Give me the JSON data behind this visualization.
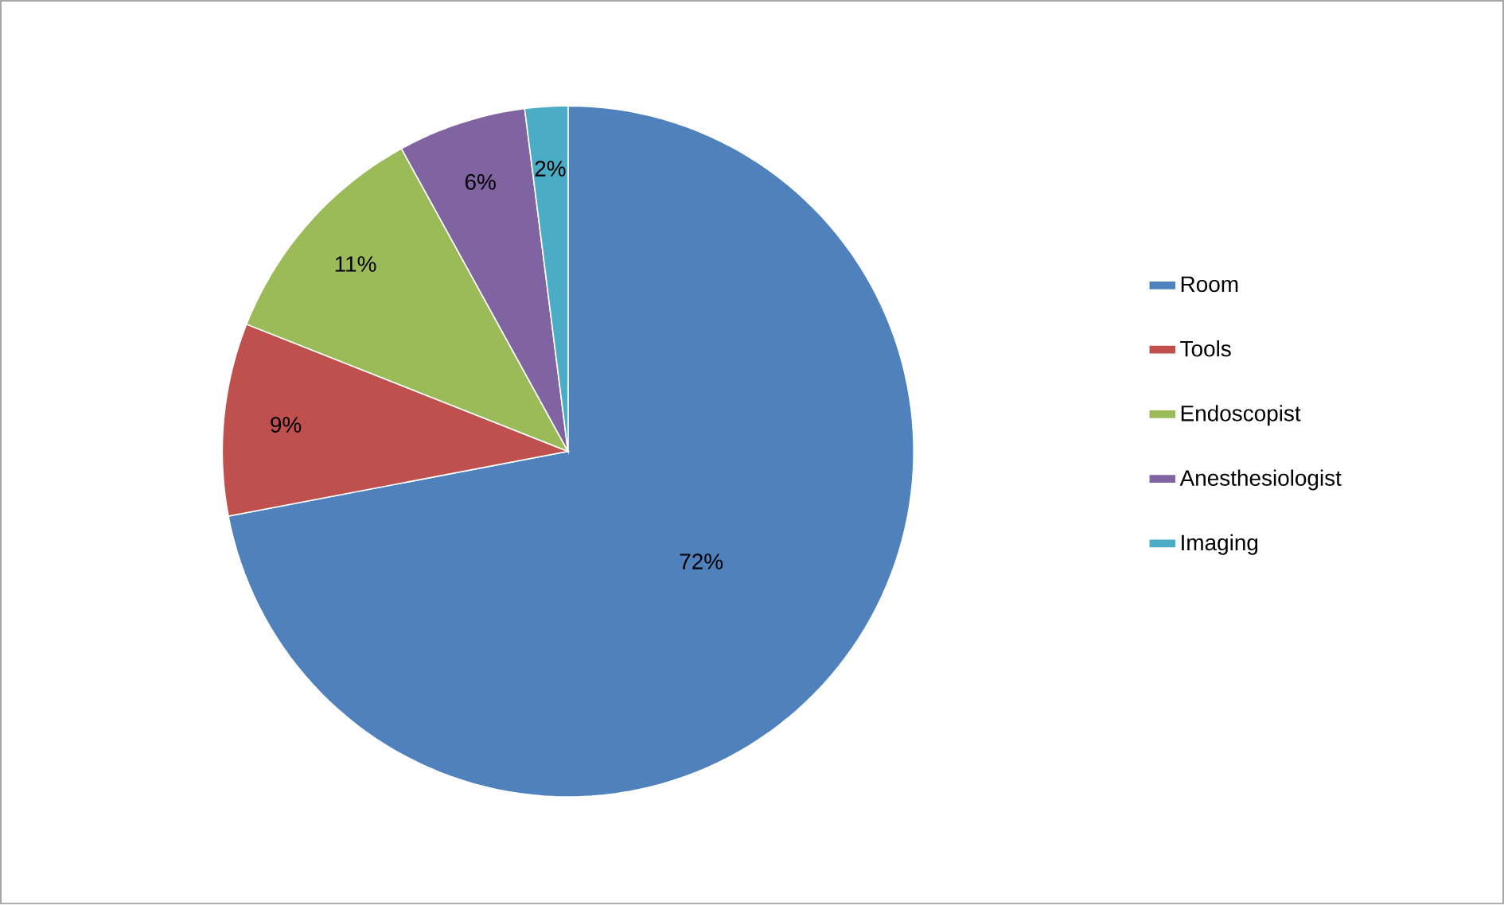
{
  "chart_data": {
    "type": "pie",
    "categories": [
      "Room",
      "Tools",
      "Endoscopist",
      "Anesthesiologist",
      "Imaging"
    ],
    "values": [
      72,
      9,
      11,
      6,
      2
    ],
    "value_labels": [
      "72%",
      "9%",
      "11%",
      "6%",
      "2%"
    ],
    "colors": [
      "#4f81bd",
      "#c0504d",
      "#9bbb59",
      "#8064a2",
      "#4bacc6"
    ],
    "legend": "right"
  }
}
